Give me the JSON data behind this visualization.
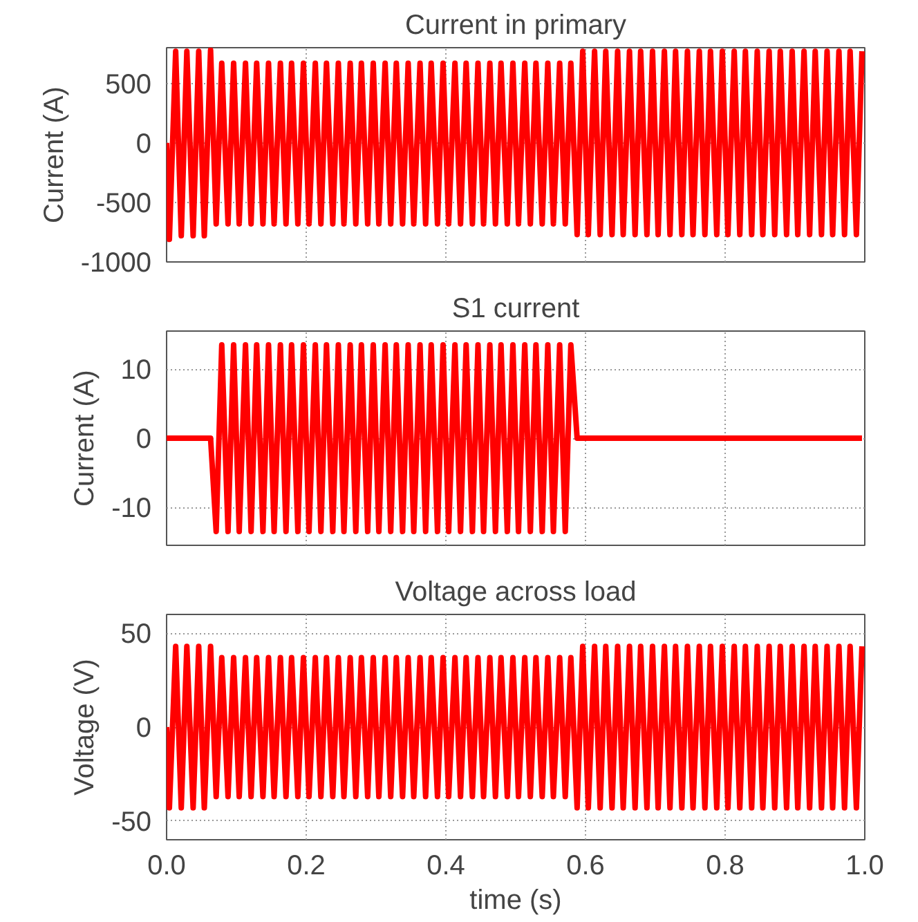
{
  "chart_data": [
    {
      "type": "line",
      "title": "Current in primary",
      "ylabel": "Current (A)",
      "xlim": [
        0,
        1
      ],
      "ylim": [
        -1000,
        800
      ],
      "xticks": [
        0,
        0.2,
        0.4,
        0.6,
        0.8,
        1
      ],
      "yticks": [
        -1000,
        -500,
        0,
        500
      ],
      "grid": true,
      "tick_labels": "y",
      "x": [
        0,
        0.004,
        0.013,
        0.021,
        0.029,
        0.038,
        0.046,
        0.054,
        0.063,
        0.071,
        0.079,
        0.088,
        0.096,
        0.104,
        0.113,
        0.121,
        0.129,
        0.138,
        0.146,
        0.154,
        0.163,
        0.171,
        0.179,
        0.188,
        0.196,
        0.204,
        0.213,
        0.221,
        0.229,
        0.238,
        0.246,
        0.254,
        0.263,
        0.271,
        0.279,
        0.288,
        0.296,
        0.304,
        0.313,
        0.321,
        0.329,
        0.338,
        0.346,
        0.354,
        0.363,
        0.371,
        0.379,
        0.388,
        0.396,
        0.404,
        0.413,
        0.421,
        0.429,
        0.438,
        0.446,
        0.454,
        0.463,
        0.471,
        0.479,
        0.488,
        0.496,
        0.504,
        0.513,
        0.521,
        0.529,
        0.538,
        0.546,
        0.554,
        0.563,
        0.571,
        0.579,
        0.588,
        0.596,
        0.604,
        0.613,
        0.621,
        0.629,
        0.638,
        0.646,
        0.654,
        0.663,
        0.671,
        0.679,
        0.688,
        0.696,
        0.704,
        0.713,
        0.721,
        0.729,
        0.738,
        0.746,
        0.754,
        0.763,
        0.771,
        0.779,
        0.788,
        0.796,
        0.804,
        0.813,
        0.821,
        0.829,
        0.838,
        0.846,
        0.854,
        0.863,
        0.871,
        0.879,
        0.888,
        0.896,
        0.904,
        0.913,
        0.921,
        0.929,
        0.938,
        0.946,
        0.954,
        0.963,
        0.971,
        0.979,
        0.988,
        0.996
      ],
      "series": [
        {
          "color": "#ff0000",
          "values": [
            0,
            -810,
            770,
            -780,
            770,
            -780,
            770,
            -780,
            780,
            -680,
            670,
            -680,
            670,
            -680,
            670,
            -680,
            670,
            -680,
            670,
            -680,
            670,
            -680,
            670,
            -680,
            670,
            -680,
            670,
            -680,
            670,
            -680,
            670,
            -680,
            670,
            -680,
            670,
            -680,
            670,
            -680,
            670,
            -680,
            670,
            -680,
            670,
            -680,
            670,
            -680,
            670,
            -680,
            670,
            -680,
            670,
            -680,
            670,
            -680,
            670,
            -680,
            670,
            -680,
            670,
            -680,
            670,
            -680,
            670,
            -680,
            670,
            -680,
            670,
            -680,
            670,
            -680,
            670,
            -770,
            770,
            -770,
            770,
            -770,
            770,
            -770,
            770,
            -770,
            770,
            -770,
            770,
            -770,
            770,
            -770,
            770,
            -770,
            770,
            -770,
            770,
            -770,
            770,
            -770,
            770,
            -770,
            770,
            -770,
            770,
            -770,
            770,
            -770,
            770,
            -770,
            770,
            -770,
            770,
            -770,
            770,
            -770,
            770,
            -770,
            770,
            -770,
            770,
            -770,
            770,
            -770,
            770,
            -770,
            770
          ]
        }
      ]
    },
    {
      "type": "line",
      "title": "S1 current",
      "ylabel": "Current (A)",
      "xlim": [
        0,
        1
      ],
      "ylim": [
        -15.5,
        15.5
      ],
      "xticks": [
        0,
        0.2,
        0.4,
        0.6,
        0.8,
        1
      ],
      "yticks": [
        -10,
        0,
        10
      ],
      "grid": true,
      "tick_labels": "y",
      "x": [
        0,
        0.004,
        0.013,
        0.021,
        0.029,
        0.038,
        0.046,
        0.054,
        0.063,
        0.071,
        0.079,
        0.088,
        0.096,
        0.104,
        0.113,
        0.121,
        0.129,
        0.138,
        0.146,
        0.154,
        0.163,
        0.171,
        0.179,
        0.188,
        0.196,
        0.204,
        0.213,
        0.221,
        0.229,
        0.238,
        0.246,
        0.254,
        0.263,
        0.271,
        0.279,
        0.288,
        0.296,
        0.304,
        0.313,
        0.321,
        0.329,
        0.338,
        0.346,
        0.354,
        0.363,
        0.371,
        0.379,
        0.388,
        0.396,
        0.404,
        0.413,
        0.421,
        0.429,
        0.438,
        0.446,
        0.454,
        0.463,
        0.471,
        0.479,
        0.488,
        0.496,
        0.504,
        0.513,
        0.521,
        0.529,
        0.538,
        0.546,
        0.554,
        0.563,
        0.571,
        0.579,
        0.588,
        0.596,
        0.604,
        0.613,
        0.621,
        0.629,
        0.638,
        0.646,
        0.654,
        0.663,
        0.671,
        0.679,
        0.688,
        0.696,
        0.704,
        0.713,
        0.721,
        0.729,
        0.738,
        0.746,
        0.754,
        0.763,
        0.771,
        0.779,
        0.788,
        0.796,
        0.804,
        0.813,
        0.821,
        0.829,
        0.838,
        0.846,
        0.854,
        0.863,
        0.871,
        0.879,
        0.888,
        0.896,
        0.904,
        0.913,
        0.921,
        0.929,
        0.938,
        0.946,
        0.954,
        0.963,
        0.971,
        0.979,
        0.988,
        0.996
      ],
      "series": [
        {
          "color": "#ff0000",
          "values": [
            0,
            0,
            0,
            0,
            0,
            0,
            0,
            0,
            0,
            -13.5,
            13.5,
            -13.5,
            13.5,
            -13.5,
            13.5,
            -13.5,
            13.5,
            -13.5,
            13.5,
            -13.5,
            13.5,
            -13.5,
            13.5,
            -13.5,
            13.5,
            -13.5,
            13.5,
            -13.5,
            13.5,
            -13.5,
            13.5,
            -13.5,
            13.5,
            -13.5,
            13.5,
            -13.5,
            13.5,
            -13.5,
            13.5,
            -13.5,
            13.5,
            -13.5,
            13.5,
            -13.5,
            13.5,
            -13.5,
            13.5,
            -13.5,
            13.5,
            -13.5,
            13.5,
            -13.5,
            13.5,
            -13.5,
            13.5,
            -13.5,
            13.5,
            -13.5,
            13.5,
            -13.5,
            13.5,
            -13.5,
            13.5,
            -13.5,
            13.5,
            -13.5,
            13.5,
            -13.5,
            13.5,
            -13.5,
            13.5,
            0,
            0,
            0,
            0,
            0,
            0,
            0,
            0,
            0,
            0,
            0,
            0,
            0,
            0,
            0,
            0,
            0,
            0,
            0,
            0,
            0,
            0,
            0,
            0,
            0,
            0,
            0,
            0,
            0,
            0,
            0,
            0,
            0,
            0,
            0,
            0,
            0,
            0,
            0,
            0,
            0,
            0,
            0,
            0,
            0,
            0,
            0,
            0,
            0,
            0
          ]
        }
      ]
    },
    {
      "type": "line",
      "title": "Voltage across load",
      "xlabel": "time (s)",
      "ylabel": "Voltage (V)",
      "xlim": [
        0,
        1
      ],
      "ylim": [
        -60,
        60
      ],
      "xticks": [
        {
          "value": 0,
          "label": "0.0"
        },
        {
          "value": 0.2,
          "label": "0.2"
        },
        {
          "value": 0.4,
          "label": "0.4"
        },
        {
          "value": 0.6,
          "label": "0.6"
        },
        {
          "value": 0.8,
          "label": "0.8"
        },
        {
          "value": 1,
          "label": "1.0"
        }
      ],
      "yticks": [
        -50,
        0,
        50
      ],
      "grid": true,
      "x": [
        0,
        0.004,
        0.013,
        0.021,
        0.029,
        0.038,
        0.046,
        0.054,
        0.063,
        0.071,
        0.079,
        0.088,
        0.096,
        0.104,
        0.113,
        0.121,
        0.129,
        0.138,
        0.146,
        0.154,
        0.163,
        0.171,
        0.179,
        0.188,
        0.196,
        0.204,
        0.213,
        0.221,
        0.229,
        0.238,
        0.246,
        0.254,
        0.263,
        0.271,
        0.279,
        0.288,
        0.296,
        0.304,
        0.313,
        0.321,
        0.329,
        0.338,
        0.346,
        0.354,
        0.363,
        0.371,
        0.379,
        0.388,
        0.396,
        0.404,
        0.413,
        0.421,
        0.429,
        0.438,
        0.446,
        0.454,
        0.463,
        0.471,
        0.479,
        0.488,
        0.496,
        0.504,
        0.513,
        0.521,
        0.529,
        0.538,
        0.546,
        0.554,
        0.563,
        0.571,
        0.579,
        0.588,
        0.596,
        0.604,
        0.613,
        0.621,
        0.629,
        0.638,
        0.646,
        0.654,
        0.663,
        0.671,
        0.679,
        0.688,
        0.696,
        0.704,
        0.713,
        0.721,
        0.729,
        0.738,
        0.746,
        0.754,
        0.763,
        0.771,
        0.779,
        0.788,
        0.796,
        0.804,
        0.813,
        0.821,
        0.829,
        0.838,
        0.846,
        0.854,
        0.863,
        0.871,
        0.879,
        0.888,
        0.896,
        0.904,
        0.913,
        0.921,
        0.929,
        0.938,
        0.946,
        0.954,
        0.963,
        0.971,
        0.979,
        0.988,
        0.996
      ],
      "series": [
        {
          "color": "#ff0000",
          "values": [
            0,
            -43,
            43,
            -43,
            43,
            -43,
            43,
            -43,
            43,
            -37,
            37,
            -37,
            37,
            -37,
            37,
            -37,
            37,
            -37,
            37,
            -37,
            37,
            -37,
            37,
            -37,
            37,
            -37,
            37,
            -37,
            37,
            -37,
            37,
            -37,
            37,
            -37,
            37,
            -37,
            37,
            -37,
            37,
            -37,
            37,
            -37,
            37,
            -37,
            37,
            -37,
            37,
            -37,
            37,
            -37,
            37,
            -37,
            37,
            -37,
            37,
            -37,
            37,
            -37,
            37,
            -37,
            37,
            -37,
            37,
            -37,
            37,
            -37,
            37,
            -37,
            37,
            -37,
            37,
            -43,
            43,
            -43,
            43,
            -43,
            43,
            -43,
            43,
            -43,
            43,
            -43,
            43,
            -43,
            43,
            -43,
            43,
            -43,
            43,
            -43,
            43,
            -43,
            43,
            -43,
            43,
            -43,
            43,
            -43,
            43,
            -43,
            43,
            -43,
            43,
            -43,
            43,
            -43,
            43,
            -43,
            43,
            -43,
            43,
            -43,
            43,
            -43,
            43,
            -43,
            43,
            -43,
            43,
            -43,
            43
          ]
        }
      ]
    }
  ]
}
